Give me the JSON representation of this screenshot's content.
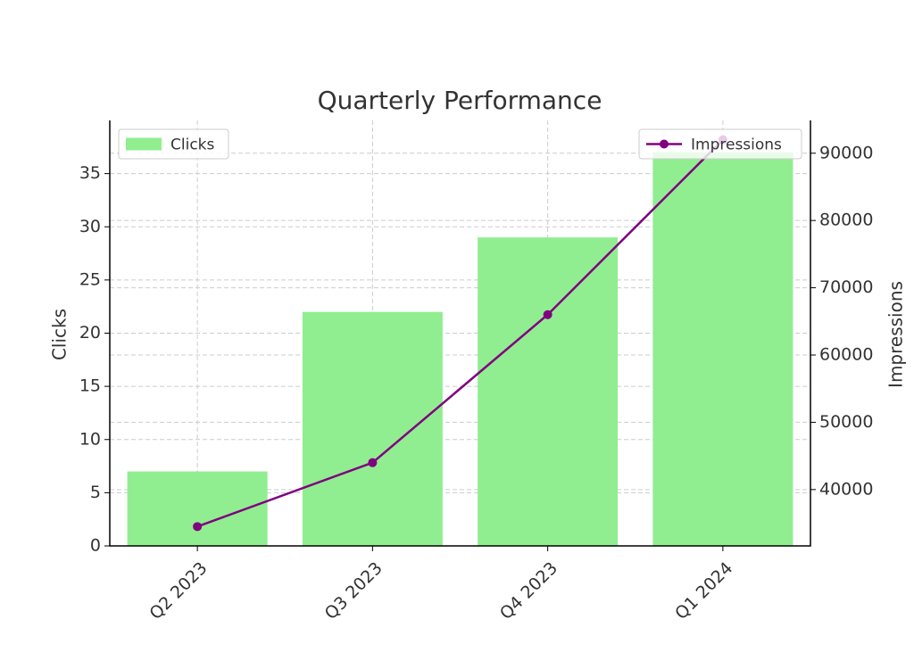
{
  "chart_data": {
    "type": "bar",
    "title": "Quarterly Performance",
    "categories": [
      "Q2 2023",
      "Q3 2023",
      "Q4 2023",
      "Q1 2024"
    ],
    "y_label": "Clicks",
    "y2_label": "Impressions",
    "series": [
      {
        "name": "Clicks",
        "type": "bar",
        "color": "#90ee90",
        "values": [
          7,
          22,
          29,
          37
        ]
      },
      {
        "name": "Impressions",
        "type": "line",
        "axis": "y2",
        "color": "#800080",
        "values": [
          34500,
          44000,
          66000,
          92000
        ]
      }
    ],
    "ylim": [
      0,
      40
    ],
    "yticks": [
      0,
      5,
      10,
      15,
      20,
      25,
      30,
      35
    ],
    "y2lim": [
      31625,
      94875
    ],
    "y2ticks": [
      40000,
      50000,
      60000,
      70000,
      80000,
      90000
    ],
    "grid": true,
    "legend": {
      "Clicks": "upper left",
      "Impressions": "upper right"
    }
  }
}
